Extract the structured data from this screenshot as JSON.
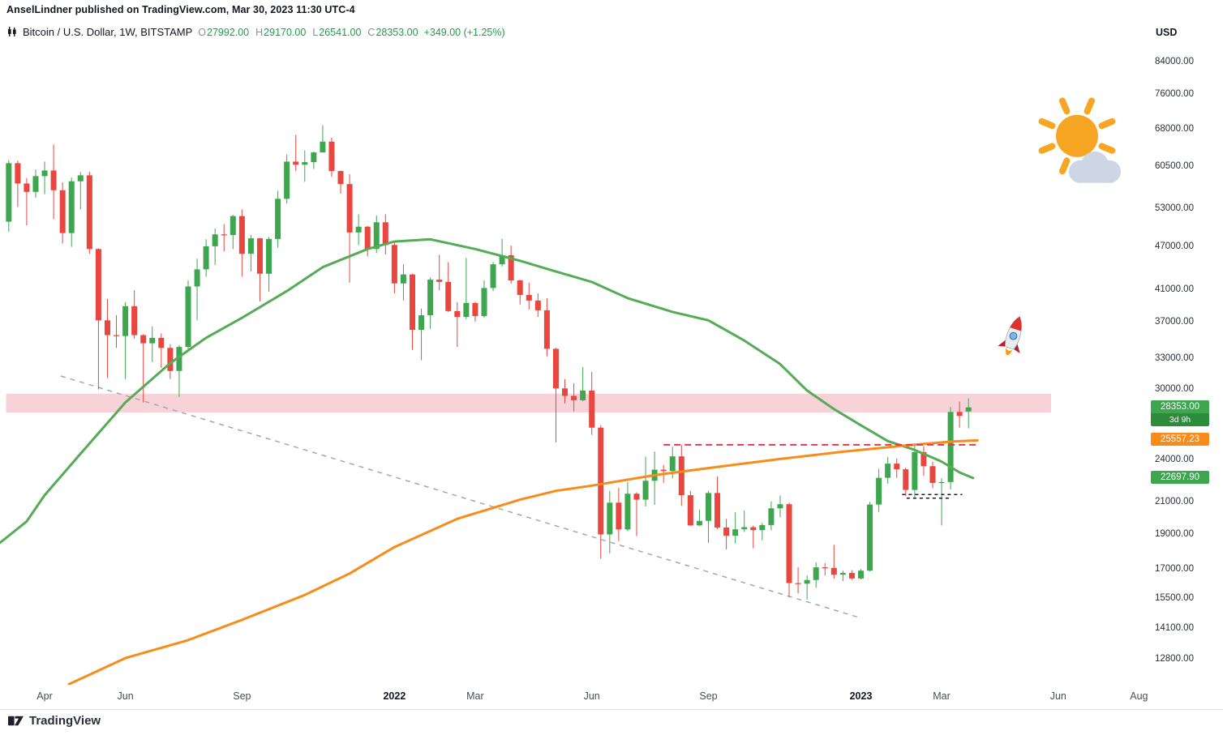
{
  "attribution": "AnselLindner published on TradingView.com, Mar 30, 2023 11:30 UTC-4",
  "header": {
    "symbol": "Bitcoin / U.S. Dollar, 1W, BITSTAMP",
    "ohlc": [
      {
        "key": "open",
        "label": "O",
        "value": "27992.00"
      },
      {
        "key": "high",
        "label": "H",
        "value": "29170.00"
      },
      {
        "key": "low",
        "label": "L",
        "value": "26541.00"
      },
      {
        "key": "close",
        "label": "C",
        "value": "28353.00"
      }
    ],
    "change": "+349.00 (+1.25%)"
  },
  "price_axis": {
    "currency": "USD",
    "ticks": [
      84000,
      76000,
      68000,
      60500,
      53000,
      47000,
      41000,
      37000,
      33000,
      30000,
      24000,
      21000,
      19000,
      17000,
      15500,
      14100,
      12800
    ],
    "badges": {
      "last_price": {
        "text": "28353.00",
        "countdown": "3d 9h",
        "price": 28353,
        "color": "#3fa650",
        "countdown_color": "#2c8c3c"
      },
      "ma200": {
        "text": "25557.23",
        "price": 25557.23,
        "color": "#f78c1b"
      },
      "ma50": {
        "text": "22697.90",
        "price": 22697.9,
        "color": "#3fa650"
      }
    }
  },
  "time_axis": {
    "labels": [
      {
        "label": "Apr",
        "i": 4,
        "major": false
      },
      {
        "label": "Jun",
        "i": 13,
        "major": false
      },
      {
        "label": "Sep",
        "i": 26,
        "major": false
      },
      {
        "label": "2022",
        "i": 43,
        "major": true
      },
      {
        "label": "Mar",
        "i": 52,
        "major": false
      },
      {
        "label": "Jun",
        "i": 65,
        "major": false
      },
      {
        "label": "Sep",
        "i": 78,
        "major": false
      },
      {
        "label": "2023",
        "i": 95,
        "major": true
      },
      {
        "label": "Mar",
        "i": 104,
        "major": false
      },
      {
        "label": "Jun",
        "i": 117,
        "major": false
      },
      {
        "label": "Aug",
        "i": 126,
        "major": false
      }
    ]
  },
  "footer": {
    "brand": "TradingView"
  },
  "chart_data": {
    "type": "candlestick",
    "title": "Bitcoin / U.S. Dollar, 1W, BITSTAMP",
    "timeframe": "1W",
    "scale": "log",
    "y_range": [
      11850,
      96000
    ],
    "x_range": [
      "2021-03-08",
      "2023-08-07"
    ],
    "grid": false,
    "up_color": "#3fa650",
    "down_color": "#e8463f",
    "columns": [
      "date",
      "open",
      "high",
      "low",
      "close"
    ],
    "candles": [
      [
        "2021-03-08",
        50900,
        61800,
        49300,
        61200
      ],
      [
        "2021-03-15",
        61200,
        61700,
        53300,
        57400
      ],
      [
        "2021-03-22",
        57400,
        58400,
        50300,
        55900
      ],
      [
        "2021-03-29",
        55900,
        60000,
        54900,
        58750
      ],
      [
        "2021-04-05",
        58750,
        61500,
        55500,
        59800
      ],
      [
        "2021-04-12",
        59800,
        64895,
        51300,
        56200
      ],
      [
        "2021-04-19",
        56200,
        57600,
        47500,
        49100
      ],
      [
        "2021-04-26",
        49100,
        58500,
        47000,
        57800
      ],
      [
        "2021-05-03",
        57800,
        59500,
        52900,
        58900
      ],
      [
        "2021-05-10",
        58900,
        59600,
        46000,
        46700
      ],
      [
        "2021-05-17",
        46700,
        46800,
        30000,
        37300
      ],
      [
        "2021-05-24",
        37300,
        39900,
        31100,
        35600
      ],
      [
        "2021-05-31",
        35600,
        37900,
        34200,
        35500
      ],
      [
        "2021-06-07",
        35500,
        39500,
        31000,
        39000
      ],
      [
        "2021-06-14",
        39000,
        41000,
        35200,
        35600
      ],
      [
        "2021-06-21",
        35600,
        35700,
        28800,
        34700
      ],
      [
        "2021-06-28",
        34700,
        36600,
        32700,
        35300
      ],
      [
        "2021-07-05",
        35300,
        35800,
        32100,
        34200
      ],
      [
        "2021-07-12",
        34200,
        34600,
        31000,
        31800
      ],
      [
        "2021-07-19",
        31800,
        34500,
        29300,
        34300
      ],
      [
        "2021-07-26",
        34300,
        42300,
        33900,
        41500
      ],
      [
        "2021-08-02",
        41500,
        45300,
        37300,
        43800
      ],
      [
        "2021-08-09",
        43800,
        48150,
        42800,
        47100
      ],
      [
        "2021-08-16",
        47100,
        49800,
        44400,
        48900
      ],
      [
        "2021-08-23",
        48900,
        50500,
        46350,
        48800
      ],
      [
        "2021-08-30",
        48800,
        52000,
        46700,
        51800
      ],
      [
        "2021-09-06",
        51800,
        52900,
        42800,
        46000
      ],
      [
        "2021-09-13",
        46000,
        48800,
        43500,
        48300
      ],
      [
        "2021-09-20",
        48300,
        48350,
        39600,
        43200
      ],
      [
        "2021-09-27",
        43200,
        48500,
        40800,
        48200
      ],
      [
        "2021-10-04",
        48200,
        56100,
        46900,
        54700
      ],
      [
        "2021-10-11",
        54700,
        62900,
        53900,
        61500
      ],
      [
        "2021-10-18",
        61500,
        66900,
        59700,
        60900
      ],
      [
        "2021-10-25",
        60900,
        63700,
        57700,
        61400
      ],
      [
        "2021-11-01",
        61400,
        63500,
        60100,
        63300
      ],
      [
        "2021-11-08",
        63300,
        69000,
        63300,
        65500
      ],
      [
        "2021-11-15",
        65500,
        66300,
        58600,
        59700
      ],
      [
        "2021-11-22",
        59700,
        59800,
        55600,
        57300
      ],
      [
        "2021-11-29",
        57300,
        59100,
        42000,
        49200
      ],
      [
        "2021-12-06",
        49200,
        52100,
        47300,
        50100
      ],
      [
        "2021-12-13",
        50100,
        50200,
        45600,
        46700
      ],
      [
        "2021-12-20",
        46700,
        51900,
        46100,
        50800
      ],
      [
        "2021-12-27",
        50800,
        52100,
        45900,
        47300
      ],
      [
        "2022-01-03",
        47300,
        47600,
        40600,
        41900
      ],
      [
        "2022-01-10",
        41900,
        44500,
        39700,
        43100
      ],
      [
        "2022-01-17",
        43100,
        43200,
        34000,
        36200
      ],
      [
        "2022-01-24",
        36200,
        38700,
        32900,
        37900
      ],
      [
        "2022-01-31",
        37900,
        42700,
        36300,
        42400
      ],
      [
        "2022-02-07",
        42400,
        45850,
        41000,
        42100
      ],
      [
        "2022-02-14",
        42100,
        44800,
        38300,
        38400
      ],
      [
        "2022-02-21",
        38400,
        39500,
        34300,
        37700
      ],
      [
        "2022-02-28",
        37700,
        45400,
        37450,
        39400
      ],
      [
        "2022-03-07",
        39400,
        39550,
        37155,
        37800
      ],
      [
        "2022-03-14",
        37800,
        42300,
        37600,
        41300
      ],
      [
        "2022-03-21",
        41300,
        44800,
        40900,
        44500
      ],
      [
        "2022-03-28",
        44500,
        48200,
        44200,
        45800
      ],
      [
        "2022-04-04",
        45800,
        47200,
        41900,
        42300
      ],
      [
        "2022-04-11",
        42300,
        42400,
        39200,
        40400
      ],
      [
        "2022-04-18",
        40400,
        42000,
        38600,
        39700
      ],
      [
        "2022-04-25",
        39700,
        40600,
        37700,
        38500
      ],
      [
        "2022-05-02",
        38500,
        40000,
        33300,
        34100
      ],
      [
        "2022-05-09",
        34100,
        34200,
        25400,
        30100
      ],
      [
        "2022-05-16",
        30100,
        31000,
        28700,
        29400
      ],
      [
        "2022-05-23",
        29400,
        30600,
        28000,
        29000
      ],
      [
        "2022-05-30",
        29000,
        32200,
        28900,
        29900
      ],
      [
        "2022-06-06",
        29900,
        31700,
        26000,
        26600
      ],
      [
        "2022-06-13",
        26600,
        26800,
        17600,
        19000
      ],
      [
        "2022-06-20",
        19000,
        21800,
        17900,
        21000
      ],
      [
        "2022-06-27",
        21000,
        22000,
        18600,
        19300
      ],
      [
        "2022-07-04",
        19300,
        22400,
        19200,
        21600
      ],
      [
        "2022-07-11",
        21600,
        21700,
        18900,
        21200
      ],
      [
        "2022-07-18",
        21200,
        24280,
        20750,
        22500
      ],
      [
        "2022-07-25",
        22500,
        24670,
        20850,
        23300
      ],
      [
        "2022-08-01",
        23300,
        23650,
        22350,
        23200
      ],
      [
        "2022-08-08",
        23200,
        25050,
        22660,
        24300
      ],
      [
        "2022-08-15",
        24300,
        25200,
        20780,
        21500
      ],
      [
        "2022-08-22",
        21500,
        21800,
        19520,
        19550
      ],
      [
        "2022-08-29",
        19550,
        20550,
        19520,
        19830
      ],
      [
        "2022-09-05",
        19830,
        21800,
        18510,
        21650
      ],
      [
        "2022-09-12",
        21650,
        22800,
        19320,
        19420
      ],
      [
        "2022-09-19",
        19420,
        19950,
        18125,
        18920
      ],
      [
        "2022-09-26",
        18920,
        20380,
        18470,
        19310
      ],
      [
        "2022-10-03",
        19310,
        20475,
        19150,
        19440
      ],
      [
        "2022-10-10",
        19440,
        19540,
        18190,
        19260
      ],
      [
        "2022-10-17",
        19260,
        19700,
        18650,
        19570
      ],
      [
        "2022-10-24",
        19570,
        21085,
        19250,
        20630
      ],
      [
        "2022-10-31",
        20630,
        21480,
        20050,
        20900
      ],
      [
        "2022-11-07",
        20900,
        21000,
        15588,
        16300
      ],
      [
        "2022-11-14",
        16300,
        17134,
        15780,
        16270
      ],
      [
        "2022-11-21",
        16270,
        16700,
        15476,
        16460
      ],
      [
        "2022-11-28",
        16460,
        17400,
        16060,
        17130
      ],
      [
        "2022-12-05",
        17130,
        17360,
        16690,
        17100
      ],
      [
        "2022-12-12",
        17100,
        18385,
        16530,
        16740
      ],
      [
        "2022-12-19",
        16740,
        16955,
        16400,
        16830
      ],
      [
        "2022-12-26",
        16830,
        16980,
        16470,
        16540
      ],
      [
        "2023-01-02",
        16540,
        17040,
        16490,
        16950
      ],
      [
        "2023-01-09",
        16950,
        21050,
        16910,
        20880
      ],
      [
        "2023-01-16",
        20880,
        23375,
        20400,
        22710
      ],
      [
        "2023-01-23",
        22710,
        24250,
        22300,
        23750
      ],
      [
        "2023-01-30",
        23750,
        24150,
        22700,
        23330
      ],
      [
        "2023-02-06",
        23330,
        23450,
        21450,
        21860
      ],
      [
        "2023-02-13",
        21860,
        25250,
        21350,
        24630
      ],
      [
        "2023-02-20",
        24630,
        25100,
        22850,
        23560
      ],
      [
        "2023-02-27",
        23560,
        23900,
        21980,
        22350
      ],
      [
        "2023-03-06",
        22350,
        22680,
        19550,
        22410
      ],
      [
        "2023-03-13",
        22410,
        28390,
        21900,
        27950
      ],
      [
        "2023-03-20",
        27950,
        28870,
        26600,
        27600
      ],
      [
        "2023-03-27",
        27992,
        29170,
        26541,
        28353
      ]
    ],
    "overlays": [
      {
        "name": "ma-50-week",
        "color": "#56ab56",
        "width": 3,
        "end_value": 22697.9,
        "points": [
          [
            -1,
            18500
          ],
          [
            2,
            19800
          ],
          [
            4,
            21500
          ],
          [
            8,
            24500
          ],
          [
            13,
            28800
          ],
          [
            18,
            32600
          ],
          [
            22,
            35300
          ],
          [
            26,
            37600
          ],
          [
            31,
            40900
          ],
          [
            35,
            44100
          ],
          [
            40,
            46700
          ],
          [
            43,
            47800
          ],
          [
            47,
            48150
          ],
          [
            52,
            46700
          ],
          [
            57,
            45000
          ],
          [
            61,
            43500
          ],
          [
            65,
            42100
          ],
          [
            69,
            40000
          ],
          [
            74,
            38300
          ],
          [
            78,
            37300
          ],
          [
            82,
            35000
          ],
          [
            86,
            32500
          ],
          [
            89,
            29900
          ],
          [
            92,
            28200
          ],
          [
            95,
            26800
          ],
          [
            98,
            25500
          ],
          [
            101,
            24800
          ],
          [
            104,
            23900
          ],
          [
            106,
            23100
          ],
          [
            107.5,
            22698
          ]
        ]
      },
      {
        "name": "ma-200-week",
        "color": "#f78c1b",
        "width": 3,
        "end_value": 25557.23,
        "points": [
          [
            6.7,
            11850
          ],
          [
            13,
            12870
          ],
          [
            20,
            13620
          ],
          [
            26,
            14520
          ],
          [
            33,
            15700
          ],
          [
            38,
            16800
          ],
          [
            43,
            18260
          ],
          [
            50,
            19960
          ],
          [
            57,
            21200
          ],
          [
            61,
            21800
          ],
          [
            65,
            22160
          ],
          [
            72,
            22900
          ],
          [
            78,
            23420
          ],
          [
            86,
            24100
          ],
          [
            93,
            24660
          ],
          [
            100,
            25150
          ],
          [
            105,
            25450
          ],
          [
            108,
            25557
          ]
        ]
      }
    ],
    "drawings": {
      "resistance_zone": {
        "price_top": 29600,
        "price_bottom": 27900,
        "i1": -0.3,
        "i2": 116.2,
        "color": "#f3bcc4",
        "opacity": 0.65
      },
      "descending_trendline": {
        "i1": 5.8,
        "p1": 31300,
        "i2": 95,
        "p2": 14600,
        "color": "#a4a7ae"
      },
      "horizontal_resistance": {
        "price": 25200,
        "i1": 73,
        "i2": 108,
        "color": "#e03a52"
      },
      "support_dashes": [
        {
          "price": 21550,
          "i1": 99.6,
          "i2": 106.3
        },
        {
          "price": 21300,
          "i1": 100.1,
          "i2": 105
        }
      ],
      "emojis": [
        {
          "kind": "sun-behind-cloud",
          "i": 120,
          "price": 64000,
          "scale": 1.0,
          "rotation": 0
        },
        {
          "kind": "rocket",
          "i": 112,
          "price": 35500,
          "scale": 1.1,
          "rotation": 18
        }
      ]
    }
  }
}
